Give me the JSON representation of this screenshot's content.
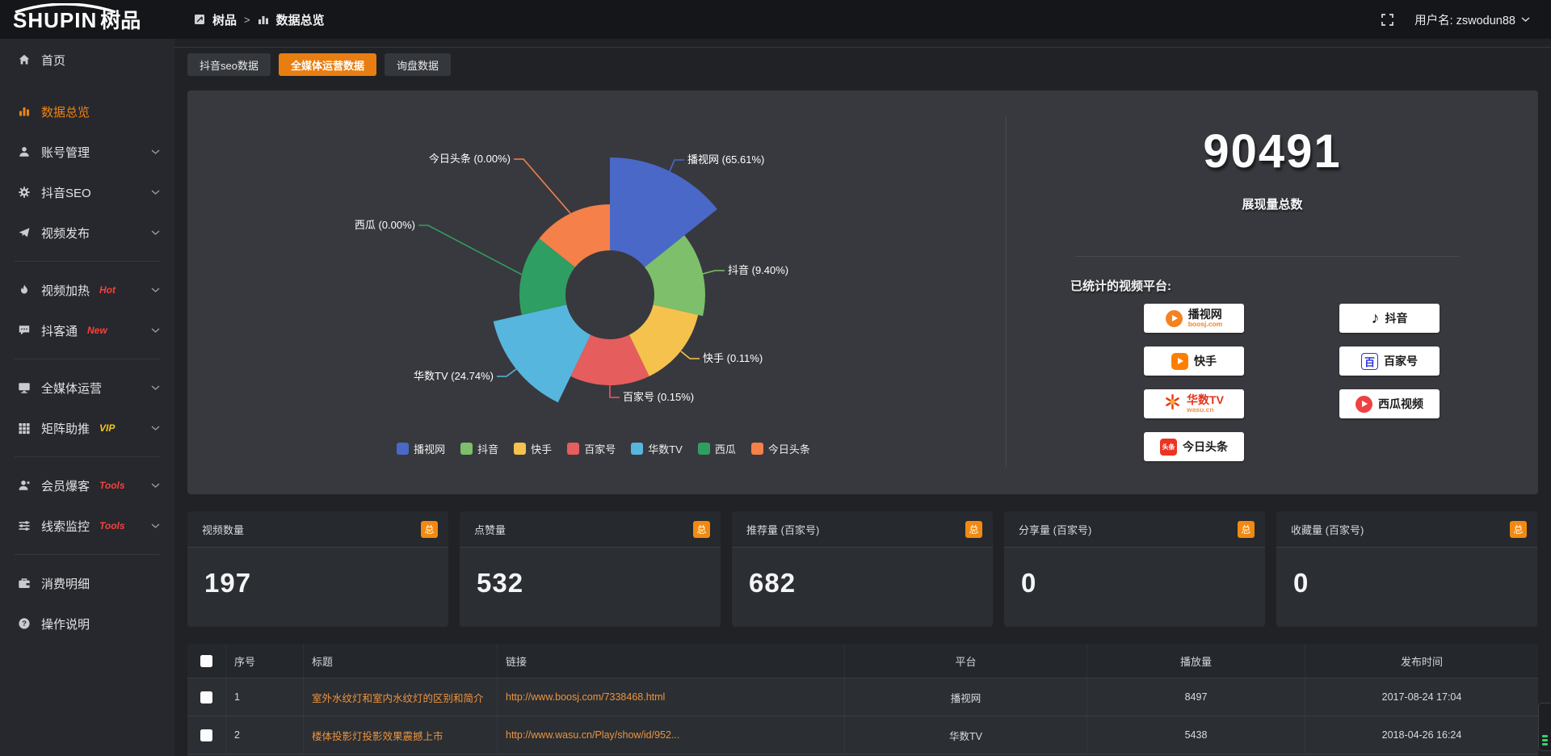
{
  "header": {
    "logo_primary": "SHUPIN",
    "logo_secondary": "树品",
    "breadcrumb_root": "树品",
    "breadcrumb_sep": ">",
    "breadcrumb_current": "数据总览",
    "username": "用户名: zswodun88"
  },
  "sidebar": {
    "items": [
      {
        "icon": "home-icon",
        "label": "首页",
        "active": false,
        "chevron": false,
        "badge": "",
        "divider_after": false,
        "first": true
      },
      {
        "icon": "chart-icon",
        "label": "数据总览",
        "active": true,
        "chevron": false,
        "badge": "",
        "divider_after": false
      },
      {
        "icon": "user-icon",
        "label": "账号管理",
        "active": false,
        "chevron": true,
        "badge": "",
        "divider_after": false
      },
      {
        "icon": "gear-icon",
        "label": "抖音SEO",
        "active": false,
        "chevron": true,
        "badge": "",
        "divider_after": false
      },
      {
        "icon": "publish-icon",
        "label": "视频发布",
        "active": false,
        "chevron": true,
        "badge": "",
        "divider_after": true
      },
      {
        "icon": "heat-icon",
        "label": "视频加热",
        "active": false,
        "chevron": true,
        "badge": "Hot",
        "badge_color": "#f5413d",
        "divider_after": false
      },
      {
        "icon": "chat-icon",
        "label": "抖客通",
        "active": false,
        "chevron": true,
        "badge": "New",
        "badge_color": "#f5413d",
        "divider_after": true
      },
      {
        "icon": "monitor-icon",
        "label": "全媒体运营",
        "active": false,
        "chevron": true,
        "badge": "",
        "divider_after": false
      },
      {
        "icon": "grid-icon",
        "label": "矩阵助推",
        "active": false,
        "chevron": true,
        "badge": "VIP",
        "badge_color": "#f6c51e",
        "divider_after": true
      },
      {
        "icon": "member-icon",
        "label": "会员爆客",
        "active": false,
        "chevron": true,
        "badge": "Tools",
        "badge_color": "#f5413d",
        "divider_after": false
      },
      {
        "icon": "sliders-icon",
        "label": "线索监控",
        "active": false,
        "chevron": true,
        "badge": "Tools",
        "badge_color": "#f5413d",
        "divider_after": true
      },
      {
        "icon": "wallet-icon",
        "label": "消费明细",
        "active": false,
        "chevron": false,
        "badge": "",
        "divider_after": false
      },
      {
        "icon": "help-icon",
        "label": "操作说明",
        "active": false,
        "chevron": false,
        "badge": "",
        "divider_after": false
      }
    ]
  },
  "tabs": [
    {
      "label": "抖音seo数据",
      "active": false
    },
    {
      "label": "全媒体运营数据",
      "active": true
    },
    {
      "label": "询盘数据",
      "active": false
    }
  ],
  "chart_data": {
    "type": "pie",
    "subtype": "nightingale-rose",
    "categories": [
      "播视网",
      "抖音",
      "快手",
      "百家号",
      "华数TV",
      "西瓜",
      "今日头条"
    ],
    "values": [
      65.61,
      9.4,
      0.11,
      0.15,
      24.74,
      0.0,
      0.0
    ],
    "unit": "%",
    "colors": [
      "#4a68c8",
      "#7dbf6b",
      "#f4c24d",
      "#e65d5d",
      "#57b6dd",
      "#2f9e62",
      "#f5804a"
    ],
    "legend_position": "bottom",
    "label_format": "{name} ({value}%)",
    "total_impressions": 90491
  },
  "overview": {
    "total": "90491",
    "total_label": "展现量总数",
    "platforms_title": "已统计的视频平台:",
    "platforms_left": [
      {
        "icon": "boosj-logo",
        "name": "播视网",
        "sub": "boosj.com"
      },
      {
        "icon": "kuaishou-logo",
        "name": "快手",
        "sub": ""
      },
      {
        "icon": "wasu-logo",
        "name": "华数TV",
        "sub": "wasu.cn"
      },
      {
        "icon": "toutiao-logo",
        "name": "今日头条",
        "sub": ""
      }
    ],
    "platforms_right": [
      {
        "icon": "douyin-logo",
        "name": "抖音",
        "sub": ""
      },
      {
        "icon": "baijiahao-logo",
        "name": "百家号",
        "sub": ""
      },
      {
        "icon": "xigua-logo",
        "name": "西瓜视频",
        "sub": ""
      }
    ]
  },
  "stat_cards": [
    {
      "label": "视频数量",
      "badge": "总",
      "value": "197"
    },
    {
      "label": "点赞量",
      "badge": "总",
      "value": "532"
    },
    {
      "label": "推荐量 (百家号)",
      "badge": "总",
      "value": "682"
    },
    {
      "label": "分享量 (百家号)",
      "badge": "总",
      "value": "0"
    },
    {
      "label": "收藏量 (百家号)",
      "badge": "总",
      "value": "0"
    }
  ],
  "table": {
    "columns": [
      "序号",
      "标题",
      "链接",
      "平台",
      "播放量",
      "发布时间"
    ],
    "rows": [
      {
        "no": "1",
        "title": "室外水纹灯和室内水纹灯的区别和简介",
        "link": "http://www.boosj.com/7338468.html",
        "platform": "播视网",
        "plays": "8497",
        "time": "2017-08-24 17:04"
      },
      {
        "no": "2",
        "title": "楼体投影灯投影效果震撼上市",
        "link": "http://www.wasu.cn/Play/show/id/952...",
        "platform": "华数TV",
        "plays": "5438",
        "time": "2018-04-26 16:24"
      }
    ]
  },
  "colors": {
    "accent_orange": "#e87d11",
    "badge_orange": "#f08a12",
    "link_orange": "#ed943d",
    "hot_red": "#f5413d",
    "vip_yellow": "#f6c51e"
  }
}
